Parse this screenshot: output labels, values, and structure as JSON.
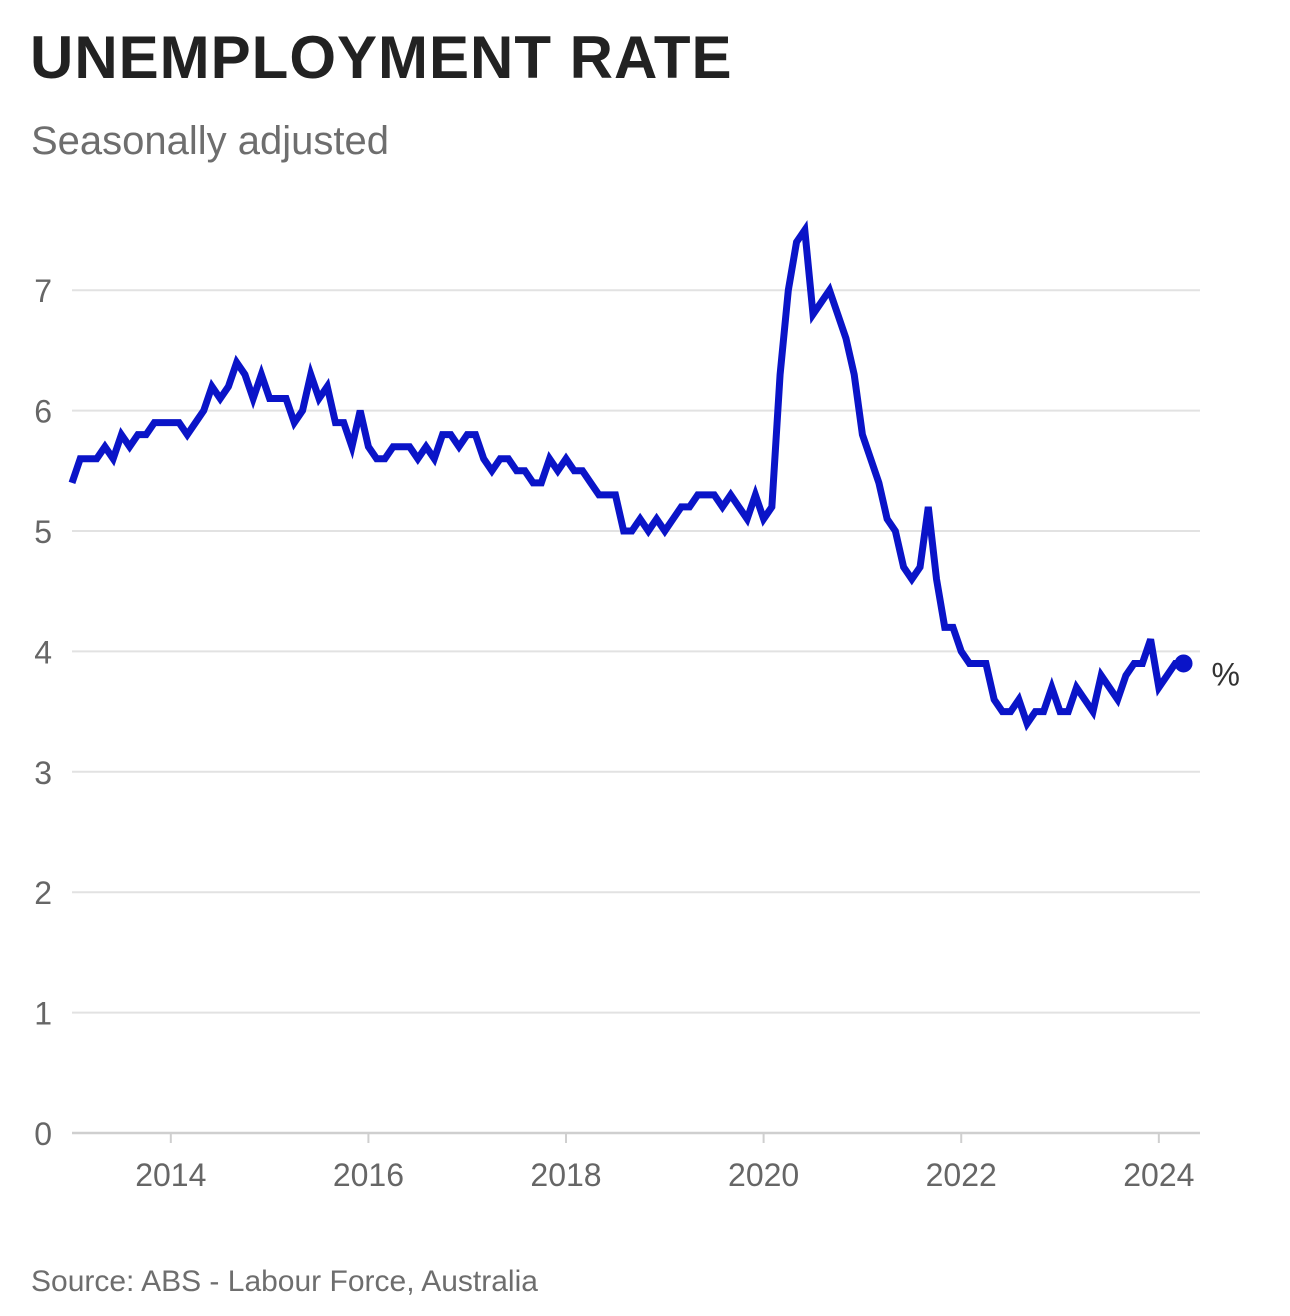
{
  "title": "UNEMPLOYMENT RATE",
  "subtitle": "Seasonally adjusted",
  "source": "Source: ABS - Labour Force, Australia",
  "colors": {
    "line": "#0a14c8",
    "grid": "#e2e2e2",
    "title": "#222222",
    "muted": "#6e6e6e"
  },
  "chart_data": {
    "type": "line",
    "title": "UNEMPLOYMENT RATE",
    "subtitle": "Seasonally adjusted",
    "unit_label": "%",
    "xlabel": "",
    "ylabel": "",
    "x_start": "2013-01",
    "x_end": "2024-04",
    "xlim": [
      "2013-01",
      "2024-06"
    ],
    "ylim": [
      0,
      7.5
    ],
    "x_ticks": [
      "2014",
      "2016",
      "2018",
      "2020",
      "2022",
      "2024"
    ],
    "y_ticks": [
      0,
      1,
      2,
      3,
      4,
      5,
      6,
      7
    ],
    "grid": true,
    "end_marker": true,
    "series": [
      {
        "values": [
          5.4,
          5.6,
          5.6,
          5.6,
          5.7,
          5.6,
          5.8,
          5.7,
          5.8,
          5.8,
          5.9,
          5.9,
          5.9,
          5.9,
          5.8,
          5.9,
          6.0,
          6.2,
          6.1,
          6.2,
          6.4,
          6.3,
          6.1,
          6.3,
          6.1,
          6.1,
          6.1,
          5.9,
          6.0,
          6.3,
          6.1,
          6.2,
          5.9,
          5.9,
          5.7,
          6.0,
          5.7,
          5.6,
          5.6,
          5.7,
          5.7,
          5.7,
          5.6,
          5.7,
          5.6,
          5.8,
          5.8,
          5.7,
          5.8,
          5.8,
          5.6,
          5.5,
          5.6,
          5.6,
          5.5,
          5.5,
          5.4,
          5.4,
          5.6,
          5.5,
          5.6,
          5.5,
          5.5,
          5.4,
          5.3,
          5.3,
          5.3,
          5.0,
          5.0,
          5.1,
          5.0,
          5.1,
          5.0,
          5.1,
          5.2,
          5.2,
          5.3,
          5.3,
          5.3,
          5.2,
          5.3,
          5.2,
          5.1,
          5.3,
          5.1,
          5.2,
          6.3,
          7.0,
          7.4,
          7.5,
          6.8,
          6.9,
          7.0,
          6.8,
          6.6,
          6.3,
          5.8,
          5.6,
          5.4,
          5.1,
          5.0,
          4.7,
          4.6,
          4.7,
          5.2,
          4.6,
          4.2,
          4.2,
          4.0,
          3.9,
          3.9,
          3.9,
          3.6,
          3.5,
          3.5,
          3.6,
          3.4,
          3.5,
          3.5,
          3.7,
          3.5,
          3.5,
          3.7,
          3.6,
          3.5,
          3.8,
          3.7,
          3.6,
          3.8,
          3.9,
          3.9,
          4.1,
          3.7,
          3.8,
          3.9,
          3.9
        ]
      }
    ]
  }
}
